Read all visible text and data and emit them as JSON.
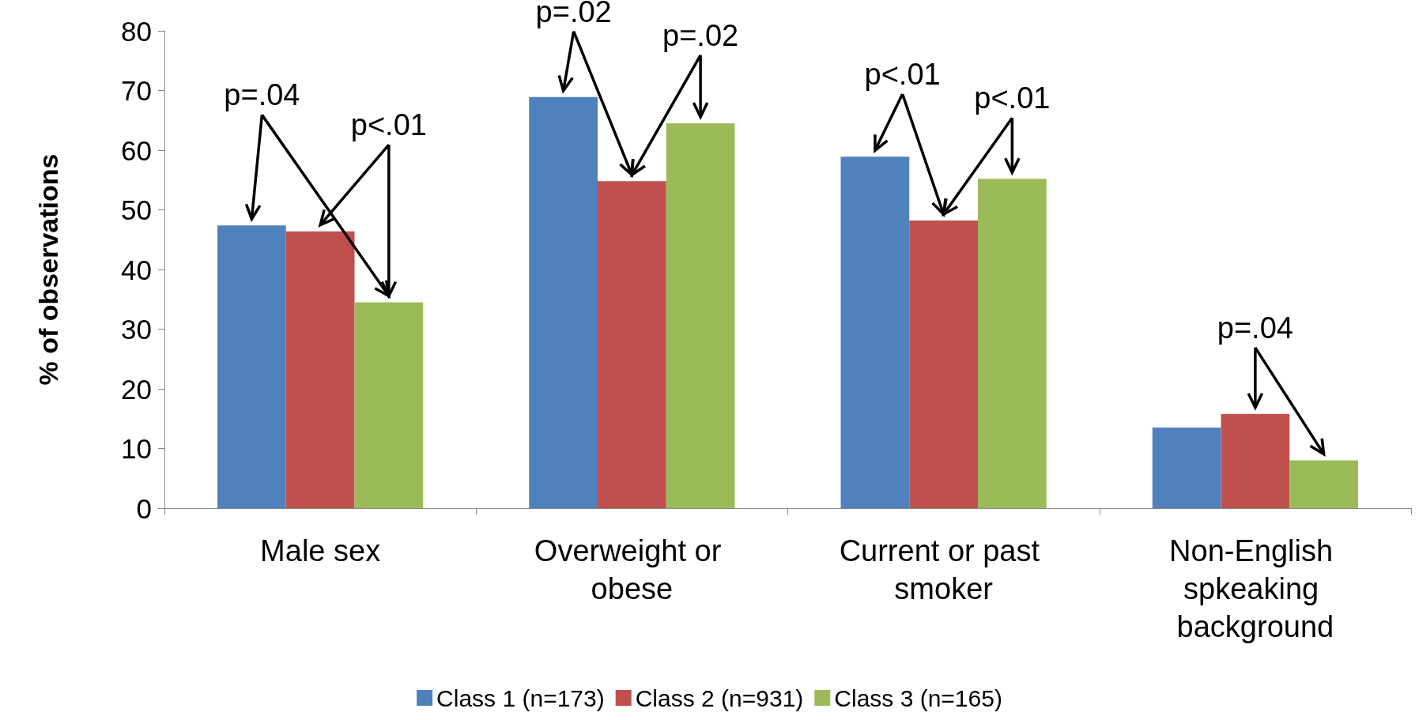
{
  "chart_data": {
    "type": "bar",
    "ylabel": "% of observations",
    "categories": [
      "Male sex",
      "Overweight or obese",
      "Current or past smoker",
      "Non-English spkeaking background"
    ],
    "series": [
      {
        "name": "Class 1 (n=173)",
        "color": "#4f81bd",
        "values": [
          47.4,
          68.9,
          58.9,
          13.5
        ]
      },
      {
        "name": "Class 2 (n=931)",
        "color": "#c0504d",
        "values": [
          46.4,
          54.8,
          48.2,
          15.8
        ]
      },
      {
        "name": "Class 3 (n=165)",
        "color": "#9bbb59",
        "values": [
          34.5,
          64.5,
          55.2,
          8.0
        ]
      }
    ],
    "ylim": [
      0,
      80
    ],
    "yticks": [
      0,
      10,
      20,
      30,
      40,
      50,
      60,
      70,
      80
    ],
    "grid": false,
    "legend": "bottom",
    "annotations": [
      "p=.04",
      "p<.01",
      "p=.02",
      "p=.02",
      "p<.01",
      "p<.01",
      "p=.04"
    ]
  }
}
